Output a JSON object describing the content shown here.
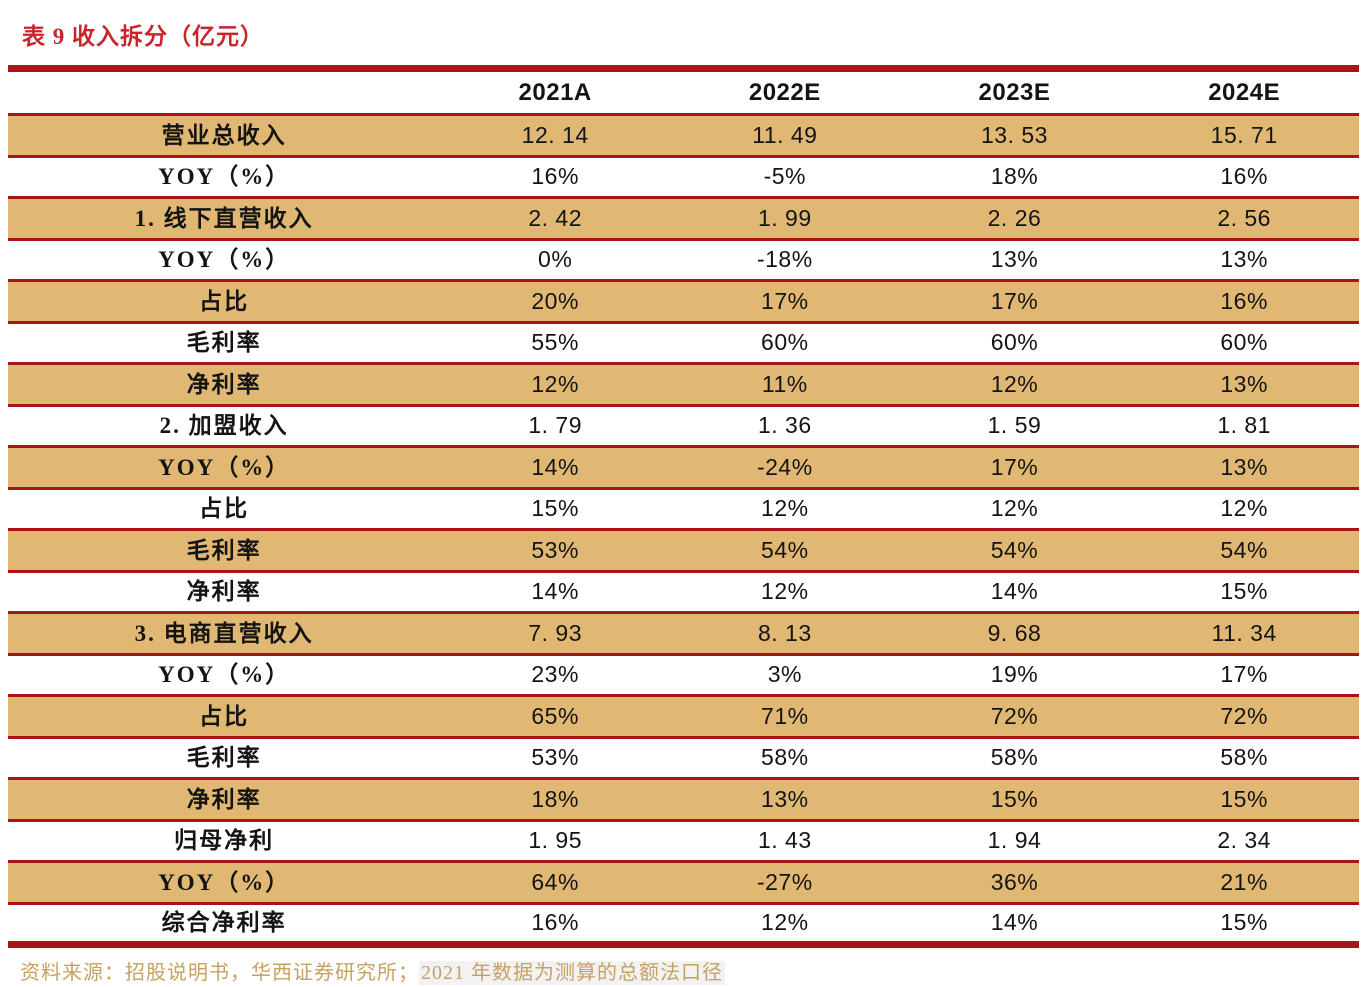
{
  "title": "表 9 收入拆分（亿元）",
  "table": {
    "columns": [
      "",
      "2021A",
      "2022E",
      "2023E",
      "2024E"
    ],
    "rows": [
      {
        "label": "营业总收入",
        "values": [
          "12.14",
          "11.49",
          "13.53",
          "15.71"
        ]
      },
      {
        "label": "YOY（%）",
        "values": [
          "16%",
          "-5%",
          "18%",
          "16%"
        ]
      },
      {
        "label": "1. 线下直营收入",
        "values": [
          "2.42",
          "1.99",
          "2.26",
          "2.56"
        ]
      },
      {
        "label": "YOY（%）",
        "values": [
          "0%",
          "-18%",
          "13%",
          "13%"
        ]
      },
      {
        "label": "占比",
        "values": [
          "20%",
          "17%",
          "17%",
          "16%"
        ]
      },
      {
        "label": "毛利率",
        "values": [
          "55%",
          "60%",
          "60%",
          "60%"
        ]
      },
      {
        "label": "净利率",
        "values": [
          "12%",
          "11%",
          "12%",
          "13%"
        ]
      },
      {
        "label": "2. 加盟收入",
        "values": [
          "1.79",
          "1.36",
          "1.59",
          "1.81"
        ]
      },
      {
        "label": "YOY（%）",
        "values": [
          "14%",
          "-24%",
          "17%",
          "13%"
        ]
      },
      {
        "label": "占比",
        "values": [
          "15%",
          "12%",
          "12%",
          "12%"
        ]
      },
      {
        "label": "毛利率",
        "values": [
          "53%",
          "54%",
          "54%",
          "54%"
        ]
      },
      {
        "label": "净利率",
        "values": [
          "14%",
          "12%",
          "14%",
          "15%"
        ]
      },
      {
        "label": "3. 电商直营收入",
        "values": [
          "7.93",
          "8.13",
          "9.68",
          "11.34"
        ]
      },
      {
        "label": "YOY（%）",
        "values": [
          "23%",
          "3%",
          "19%",
          "17%"
        ]
      },
      {
        "label": "占比",
        "values": [
          "65%",
          "71%",
          "72%",
          "72%"
        ]
      },
      {
        "label": "毛利率",
        "values": [
          "53%",
          "58%",
          "58%",
          "58%"
        ]
      },
      {
        "label": "净利率",
        "values": [
          "18%",
          "13%",
          "15%",
          "15%"
        ]
      },
      {
        "label": "归母净利",
        "values": [
          "1.95",
          "1.43",
          "1.94",
          "2.34"
        ]
      },
      {
        "label": "YOY（%）",
        "values": [
          "64%",
          "-27%",
          "36%",
          "21%"
        ]
      },
      {
        "label": "综合净利率",
        "values": [
          "16%",
          "12%",
          "14%",
          "15%"
        ]
      }
    ],
    "stripe_pattern": "odd-rows-tan"
  },
  "footer": {
    "source": "资料来源：招股说明书，华西证券研究所；",
    "note": "2021 年数据为测算的总额法口径"
  },
  "colors": {
    "border_red": "#a81518",
    "title_red": "#c9252d",
    "row_tan": "#e0b873",
    "footer_gold": "#c7a163",
    "text_ink": "#141414"
  }
}
